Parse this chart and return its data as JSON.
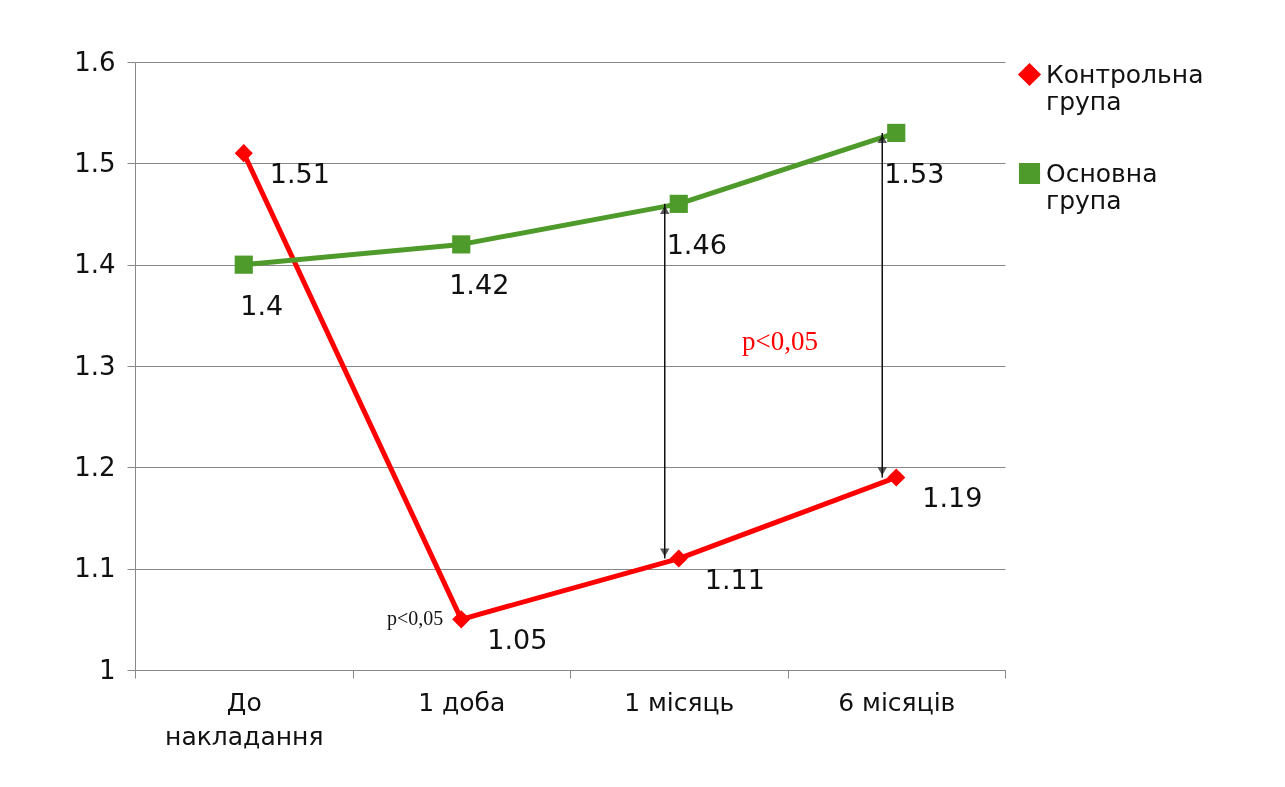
{
  "chart_data": {
    "type": "line",
    "categories": [
      "До накладання",
      "1 доба",
      "1 місяць",
      "6 місяців"
    ],
    "series": [
      {
        "name": "Контрольна група",
        "color": "#ff0000",
        "marker": "diamond",
        "values": [
          1.51,
          1.05,
          1.11,
          1.19
        ]
      },
      {
        "name": "Основна група",
        "color": "#4e9a2a",
        "marker": "square",
        "values": [
          1.4,
          1.42,
          1.46,
          1.53
        ]
      }
    ],
    "ylim": [
      1,
      1.6
    ],
    "yticks": [
      1,
      1.1,
      1.2,
      1.3,
      1.4,
      1.5,
      1.6
    ],
    "grid": "y",
    "legend": "right",
    "data_labels": true,
    "annotations": [
      {
        "text": "p<0,05",
        "x": "1 доба",
        "y": 1.05
      },
      "p<0,05"
    ]
  }
}
